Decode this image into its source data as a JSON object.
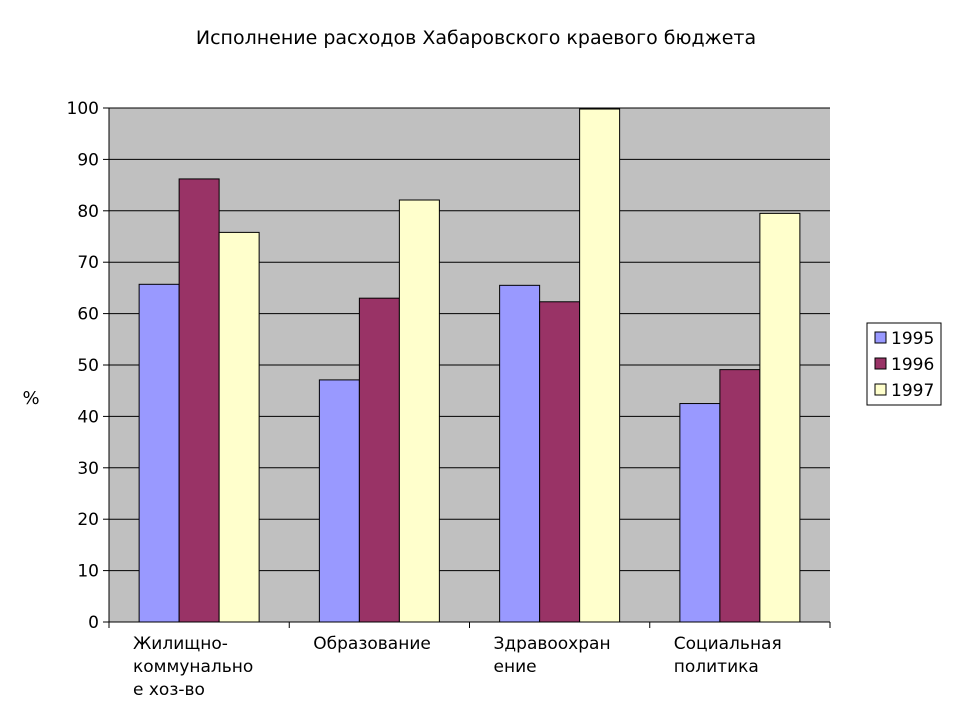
{
  "chart_data": {
    "type": "bar",
    "title": "Исполнение расходов Хабаровского краевого бюджета",
    "xlabel": "",
    "ylabel": "%",
    "ylim": [
      0,
      100
    ],
    "yticks": [
      0,
      10,
      20,
      30,
      40,
      50,
      60,
      70,
      80,
      90,
      100
    ],
    "grid": true,
    "legend_position": "right",
    "categories": [
      [
        "Жилищно-",
        "коммунально",
        "е хоз-во"
      ],
      [
        "Образование"
      ],
      [
        "Здравоохран",
        "ение"
      ],
      [
        "Социальная",
        "политика"
      ]
    ],
    "series": [
      {
        "name": "1995",
        "color": "#9999ff",
        "values": [
          65.7,
          47.1,
          65.5,
          42.5
        ]
      },
      {
        "name": "1996",
        "color": "#993366",
        "values": [
          86.2,
          63.0,
          62.3,
          49.1
        ]
      },
      {
        "name": "1997",
        "color": "#ffffcc",
        "values": [
          75.8,
          82.1,
          99.8,
          79.5
        ]
      }
    ],
    "plot_background": "#c0c0c0"
  }
}
